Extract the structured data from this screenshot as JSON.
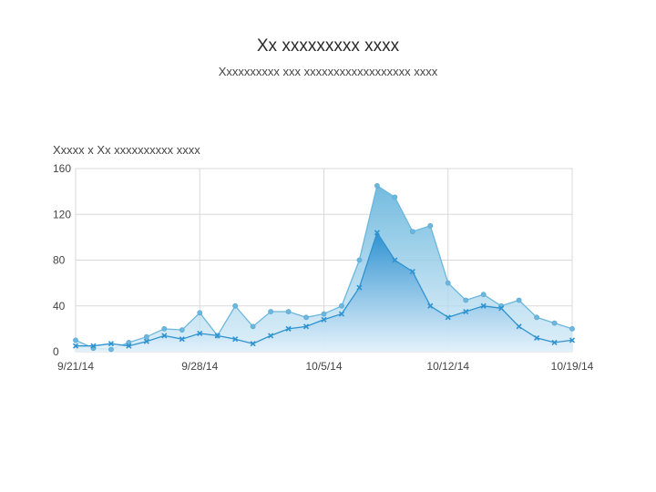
{
  "chart_data": {
    "type": "area",
    "title": "Xx xxxxxxxxx xxxx",
    "subtitle": "Xxxxxxxxxx xxx xxxxxxxxxxxxxxxxxx xxxx",
    "ylabel": "Xxxxx x Xx xxxxxxxxxx xxxx",
    "xlabel": "",
    "x_tick_labels": [
      "9/21/14",
      "9/28/14",
      "10/5/14",
      "10/12/14",
      "10/19/14"
    ],
    "y_ticks": [
      0,
      40,
      80,
      120,
      160
    ],
    "ylim": [
      0,
      160
    ],
    "grid": true,
    "x": [
      "9/21/14",
      "9/22/14",
      "9/23/14",
      "9/24/14",
      "9/25/14",
      "9/26/14",
      "9/27/14",
      "9/28/14",
      "9/29/14",
      "9/30/14",
      "10/1/14",
      "10/2/14",
      "10/3/14",
      "10/4/14",
      "10/5/14",
      "10/6/14",
      "10/7/14",
      "10/8/14",
      "10/9/14",
      "10/10/14",
      "10/11/14",
      "10/12/14",
      "10/13/14",
      "10/14/14",
      "10/15/14",
      "10/16/14",
      "10/17/14",
      "10/18/14",
      "10/19/14"
    ],
    "series": [
      {
        "color": "#6bb7dd",
        "values": [
          10,
          3,
          2,
          8,
          13,
          20,
          19,
          34,
          14,
          40,
          22,
          35,
          35,
          30,
          33,
          40,
          80,
          145,
          135,
          105,
          110,
          60,
          45,
          50,
          40,
          45,
          30,
          25,
          20
        ]
      },
      {
        "color": "#2f93d0",
        "values": [
          5,
          5,
          7,
          5,
          9,
          14,
          11,
          16,
          14,
          11,
          7,
          14,
          20,
          22,
          28,
          33,
          56,
          104,
          80,
          70,
          40,
          30,
          35,
          40,
          38,
          22,
          12,
          8,
          10
        ]
      }
    ]
  }
}
